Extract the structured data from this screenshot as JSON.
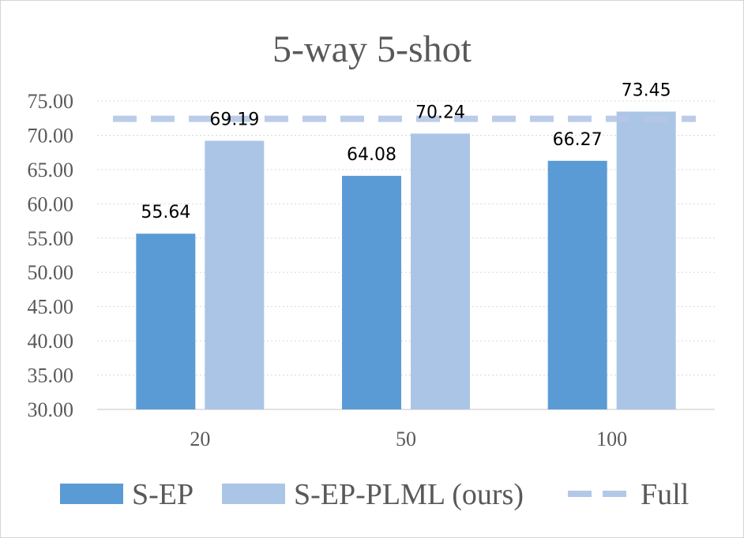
{
  "chart_data": {
    "type": "bar",
    "title": "5-way 5-shot",
    "xlabel": "",
    "ylabel": "",
    "categories": [
      "20",
      "50",
      "100"
    ],
    "series": [
      {
        "name": "S-EP",
        "values": [
          55.64,
          64.08,
          66.27
        ],
        "color": "#5b9bd5"
      },
      {
        "name": "S-EP-PLML (ours)",
        "values": [
          69.19,
          70.24,
          73.45
        ],
        "color": "#abc5e6"
      }
    ],
    "reference_line": {
      "name": "Full",
      "value": 72.4,
      "style": "dashed",
      "color": "#b4c7e7"
    },
    "data_labels": {
      "S-EP": [
        "55.64",
        "64.08",
        "66.27"
      ],
      "S-EP-PLML (ours)": [
        "69.19",
        "70.24",
        "73.45"
      ]
    },
    "ylim": [
      30,
      75
    ],
    "yticks": [
      "30.00",
      "35.00",
      "40.00",
      "45.00",
      "50.00",
      "55.00",
      "60.00",
      "65.00",
      "70.00",
      "75.00"
    ],
    "grid": "horizontal dotted",
    "legend_position": "bottom"
  }
}
